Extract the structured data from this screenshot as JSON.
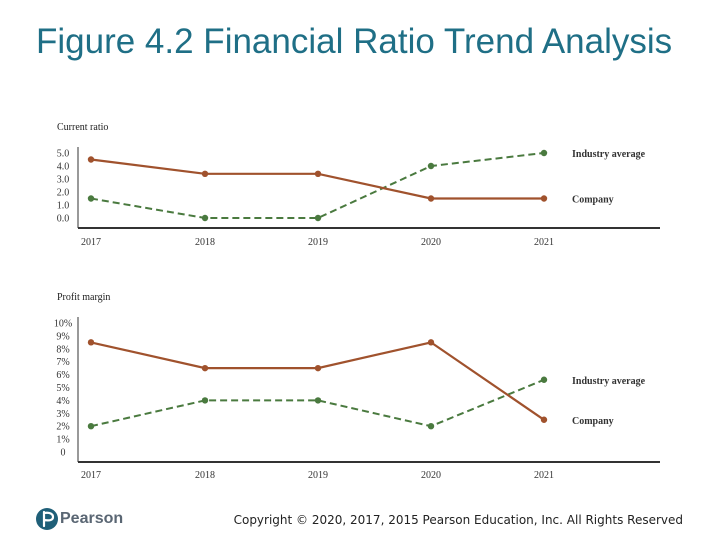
{
  "slide": {
    "title": "Figure 4.2 Financial Ratio Trend Analysis",
    "logo_text": "Pearson",
    "copyright": "Copyright © 2020, 2017, 2015 Pearson Education, Inc. All Rights Reserved"
  },
  "colors": {
    "title": "#1f6f86",
    "company": "#a0522d",
    "industry": "#4a7a3f",
    "axis": "#333333"
  },
  "chart_data": [
    {
      "type": "line",
      "title": "Current ratio",
      "x": [
        "2017",
        "2018",
        "2019",
        "2020",
        "2021"
      ],
      "yticks": [
        "5.0",
        "4.0",
        "3.0",
        "2.0",
        "1.0",
        "0.0"
      ],
      "ylim": [
        0,
        5
      ],
      "legend_position": "right",
      "series": [
        {
          "name": "Industry average",
          "values": [
            1.5,
            0.0,
            0.0,
            4.0,
            5.0
          ],
          "style": "dashed",
          "color": "#4a7a3f"
        },
        {
          "name": "Company",
          "values": [
            4.5,
            3.4,
            3.4,
            1.5,
            1.5
          ],
          "style": "solid",
          "color": "#a0522d"
        }
      ]
    },
    {
      "type": "line",
      "title": "Profit margin",
      "x": [
        "2017",
        "2018",
        "2019",
        "2020",
        "2021"
      ],
      "yticks": [
        "10%",
        "9%",
        "8%",
        "7%",
        "6%",
        "5%",
        "4%",
        "3%",
        "2%",
        "1%",
        "0"
      ],
      "ylim": [
        0,
        10
      ],
      "legend_position": "right",
      "series": [
        {
          "name": "Industry average",
          "values": [
            2.0,
            4.0,
            4.0,
            2.0,
            5.6
          ],
          "style": "dashed",
          "color": "#4a7a3f"
        },
        {
          "name": "Company",
          "values": [
            8.5,
            6.5,
            6.5,
            8.5,
            2.5
          ],
          "style": "solid",
          "color": "#a0522d"
        }
      ]
    }
  ]
}
